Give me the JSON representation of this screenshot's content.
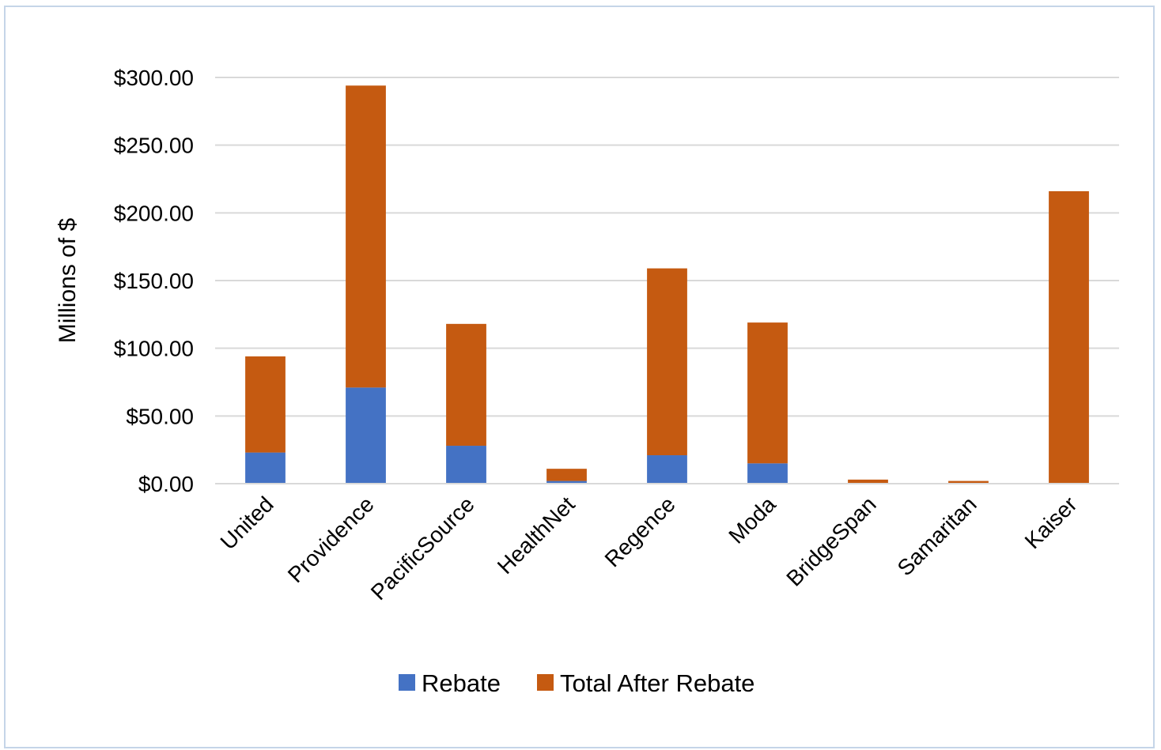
{
  "chart_data": {
    "type": "bar",
    "stacked": true,
    "title": "",
    "xlabel": "",
    "ylabel": "Millions of $",
    "ylim": [
      0,
      300
    ],
    "yticks": [
      0,
      50,
      100,
      150,
      200,
      250,
      300
    ],
    "ytick_labels": [
      "$0.00",
      "$50.00",
      "$100.00",
      "$150.00",
      "$200.00",
      "$250.00",
      "$300.00"
    ],
    "grid": "horizontal",
    "legend_position": "bottom",
    "categories": [
      "United",
      "Providence",
      "PacificSource",
      "HealthNet",
      "Regence",
      "Moda",
      "BridgeSpan",
      "Samaritan",
      "Kaiser"
    ],
    "series": [
      {
        "name": "Rebate",
        "color": "#4472c4",
        "values": [
          23,
          71,
          28,
          2,
          21,
          15,
          0,
          0,
          0
        ]
      },
      {
        "name": "Total After Rebate",
        "color": "#c55a11",
        "values": [
          71,
          223,
          90,
          9,
          138,
          104,
          3,
          2,
          216
        ]
      }
    ]
  }
}
